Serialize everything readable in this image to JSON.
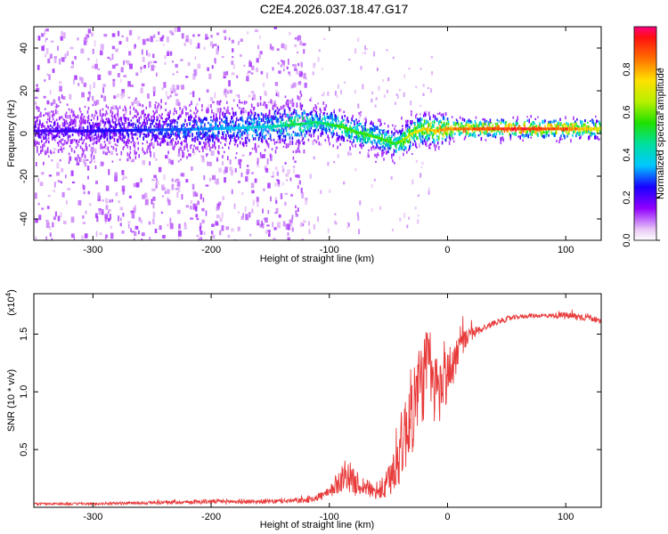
{
  "chart_data": [
    {
      "type": "heatmap",
      "title": "C2E4.2026.037.18.47.G17",
      "xlabel": "Height of straight line (km)",
      "ylabel": "Frequency (Hz)",
      "xlim": [
        -350,
        130
      ],
      "ylim": [
        -50,
        50
      ],
      "xticks": [
        -300,
        -200,
        -100,
        0,
        100
      ],
      "yticks": [
        -40,
        -20,
        0,
        20,
        40
      ],
      "colorbar": {
        "label": "Normalized spectral amplitude",
        "range": [
          0,
          1
        ],
        "ticks": [
          0.0,
          0.2,
          0.4,
          0.6,
          0.8
        ]
      },
      "ridge": {
        "x": [
          -350,
          -300,
          -250,
          -200,
          -150,
          -130,
          -110,
          -90,
          -75,
          -60,
          -50,
          -45,
          -40,
          -35,
          -30,
          -20,
          -10,
          0,
          20,
          60,
          100,
          130
        ],
        "freq": [
          1,
          1,
          1.5,
          2,
          3,
          4,
          5,
          3,
          0,
          -2,
          -4,
          -5,
          -4,
          -2,
          0,
          2,
          1,
          2,
          2,
          2,
          2,
          2
        ],
        "amp": [
          0.22,
          0.25,
          0.3,
          0.35,
          0.45,
          0.55,
          0.5,
          0.6,
          0.6,
          0.6,
          0.6,
          0.55,
          0.65,
          0.7,
          0.75,
          0.8,
          0.85,
          0.9,
          0.95,
          1.0,
          0.95,
          0.75
        ]
      }
    },
    {
      "type": "line",
      "xlabel": "Height of straight line (km)",
      "ylabel": "SNR (10 * v/v)",
      "yscale_label": "(x10",
      "yscale_exp": "4",
      "xlim": [
        -350,
        130
      ],
      "ylim": [
        0,
        1.85
      ],
      "xticks": [
        -300,
        -200,
        -100,
        0,
        100
      ],
      "yticks": [
        0.5,
        1.0,
        1.5
      ],
      "ytick_labels": [
        "0.5",
        "1.0",
        "1.5"
      ],
      "series": [
        {
          "name": "SNR",
          "color": "#e83a3a",
          "x": [
            -350,
            -300,
            -250,
            -200,
            -150,
            -120,
            -100,
            -90,
            -85,
            -80,
            -70,
            -60,
            -50,
            -40,
            -30,
            -20,
            -15,
            -10,
            -5,
            0,
            5,
            10,
            20,
            30,
            40,
            50,
            60,
            70,
            80,
            90,
            100,
            110,
            120,
            130
          ],
          "y": [
            0.03,
            0.03,
            0.04,
            0.05,
            0.05,
            0.06,
            0.12,
            0.25,
            0.3,
            0.22,
            0.18,
            0.12,
            0.2,
            0.5,
            0.85,
            1.15,
            1.2,
            1.0,
            1.05,
            1.15,
            1.25,
            1.4,
            1.5,
            1.55,
            1.6,
            1.63,
            1.65,
            1.66,
            1.66,
            1.66,
            1.66,
            1.65,
            1.65,
            1.6
          ],
          "noise": [
            0.01,
            0.01,
            0.015,
            0.02,
            0.02,
            0.025,
            0.05,
            0.12,
            0.15,
            0.12,
            0.08,
            0.06,
            0.15,
            0.3,
            0.4,
            0.4,
            0.35,
            0.35,
            0.3,
            0.25,
            0.2,
            0.12,
            0.06,
            0.03,
            0.025,
            0.025,
            0.02,
            0.02,
            0.02,
            0.02,
            0.03,
            0.04,
            0.03,
            0.02
          ]
        }
      ]
    }
  ]
}
